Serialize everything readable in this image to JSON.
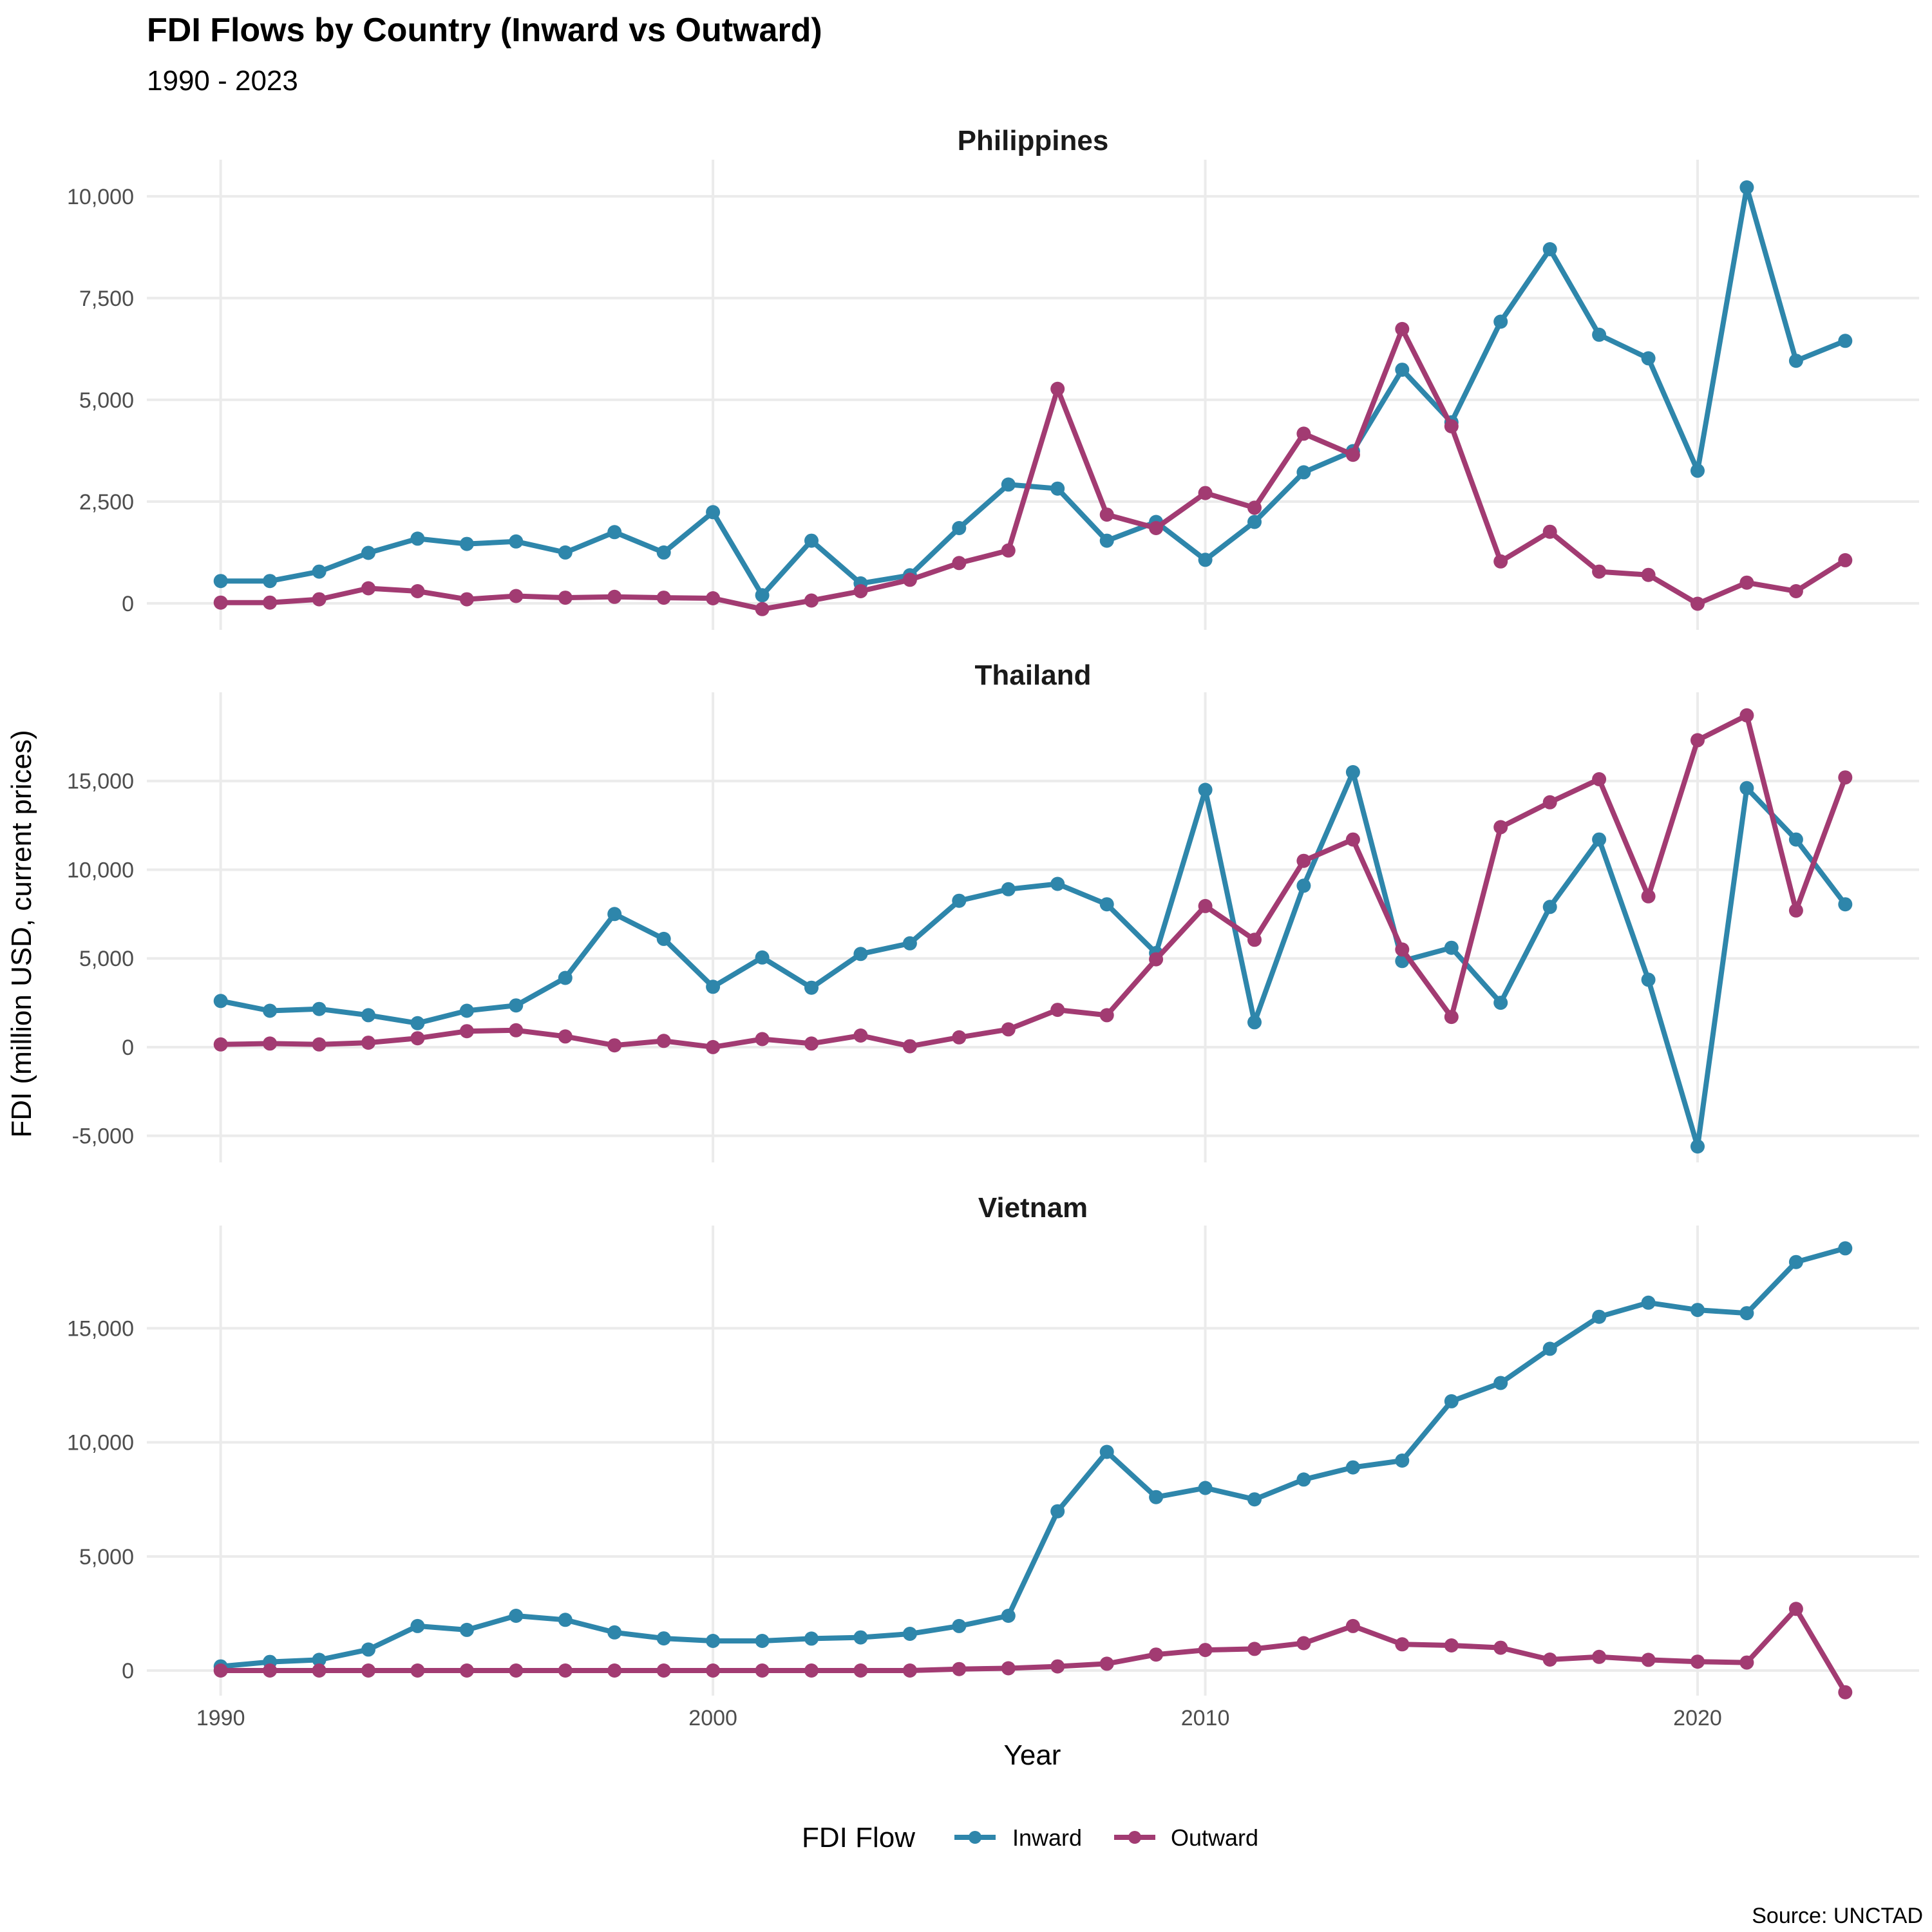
{
  "chart_data": {
    "type": "line",
    "title": "FDI Flows by Country (Inward vs Outward)",
    "subtitle": "1990 - 2023",
    "xlabel": "Year",
    "ylabel": "FDI (million USD, current prices)",
    "caption": "Source: UNCTAD",
    "legend": {
      "title": "FDI Flow",
      "position": "bottom",
      "entries": [
        "Inward",
        "Outward"
      ]
    },
    "colors": {
      "Inward": "#2e86ab",
      "Outward": "#a23b72"
    },
    "x": [
      1990,
      1991,
      1992,
      1993,
      1994,
      1995,
      1996,
      1997,
      1998,
      1999,
      2000,
      2001,
      2002,
      2003,
      2004,
      2005,
      2006,
      2007,
      2008,
      2009,
      2010,
      2011,
      2012,
      2013,
      2014,
      2015,
      2016,
      2017,
      2018,
      2019,
      2020,
      2021,
      2022,
      2023
    ],
    "xticks": [
      1990,
      2000,
      2010,
      2020
    ],
    "xlim": [
      1988.5,
      2024.5
    ],
    "panels": [
      {
        "name": "Philippines",
        "ylim": [
          -650,
          10900
        ],
        "yticks": [
          0,
          2500,
          5000,
          7500,
          10000
        ],
        "ytick_labels": [
          "0",
          "2,500",
          "5,000",
          "7,500",
          "10,000"
        ],
        "series": [
          {
            "name": "Inward",
            "values": [
              550,
              550,
              780,
              1240,
              1590,
              1460,
              1520,
              1250,
              1750,
              1250,
              2240,
              200,
              1540,
              490,
              690,
              1850,
              2920,
              2820,
              1540,
              2000,
              1070,
              2000,
              3220,
              3740,
              5740,
              4450,
              6920,
              8700,
              6600,
              6020,
              3260,
              10220,
              5960,
              6450
            ]
          },
          {
            "name": "Outward",
            "values": [
              20,
              20,
              100,
              370,
              300,
              100,
              180,
              140,
              160,
              140,
              125,
              -140,
              70,
              300,
              580,
              990,
              1300,
              5270,
              2180,
              1850,
              2710,
              2350,
              4170,
              3650,
              6740,
              4350,
              1030,
              1760,
              780,
              700,
              -10,
              510,
              300,
              1060
            ]
          }
        ]
      },
      {
        "name": "Thailand",
        "ylim": [
          -6500,
          20000
        ],
        "yticks": [
          -5000,
          0,
          5000,
          10000,
          15000
        ],
        "ytick_labels": [
          "-5,000",
          "0",
          "5,000",
          "10,000",
          "15,000"
        ],
        "series": [
          {
            "name": "Inward",
            "values": [
              2600,
              2050,
              2150,
              1800,
              1350,
              2050,
              2350,
              3900,
              7500,
              6100,
              3400,
              5050,
              3350,
              5250,
              5850,
              8250,
              8900,
              9200,
              8050,
              5300,
              14500,
              1400,
              9100,
              15500,
              4850,
              5600,
              2500,
              7900,
              11700,
              3800,
              -5600,
              14600,
              11700,
              8050
            ]
          },
          {
            "name": "Outward",
            "values": [
              150,
              200,
              150,
              250,
              500,
              900,
              950,
              600,
              100,
              350,
              0,
              450,
              200,
              650,
              50,
              550,
              1000,
              2100,
              1800,
              4950,
              7950,
              6050,
              10500,
              11700,
              5500,
              1700,
              12400,
              13800,
              15100,
              8500,
              17300,
              18700,
              7700,
              15200
            ]
          }
        ]
      },
      {
        "name": "Vietnam",
        "ylim": [
          -1100,
          19500
        ],
        "yticks": [
          0,
          5000,
          10000,
          15000
        ],
        "ytick_labels": [
          "0",
          "5,000",
          "10,000",
          "15,000"
        ],
        "series": [
          {
            "name": "Inward",
            "values": [
              180,
              380,
              470,
              920,
              1950,
              1780,
              2400,
              2220,
              1670,
              1410,
              1300,
              1300,
              1400,
              1450,
              1610,
              1950,
              2400,
              6980,
              9580,
              7600,
              8000,
              7500,
              8370,
              8900,
              9200,
              11800,
              12600,
              14100,
              15500,
              16120,
              15800,
              15660,
              17900,
              18500
            ]
          },
          {
            "name": "Outward",
            "values": [
              0,
              0,
              0,
              0,
              0,
              0,
              0,
              0,
              0,
              0,
              0,
              0,
              0,
              0,
              0,
              65,
              100,
              180,
              300,
              700,
              900,
              950,
              1200,
              1950,
              1150,
              1100,
              1000,
              480,
              600,
              470,
              390,
              350,
              2700,
              -950
            ]
          }
        ]
      }
    ]
  }
}
